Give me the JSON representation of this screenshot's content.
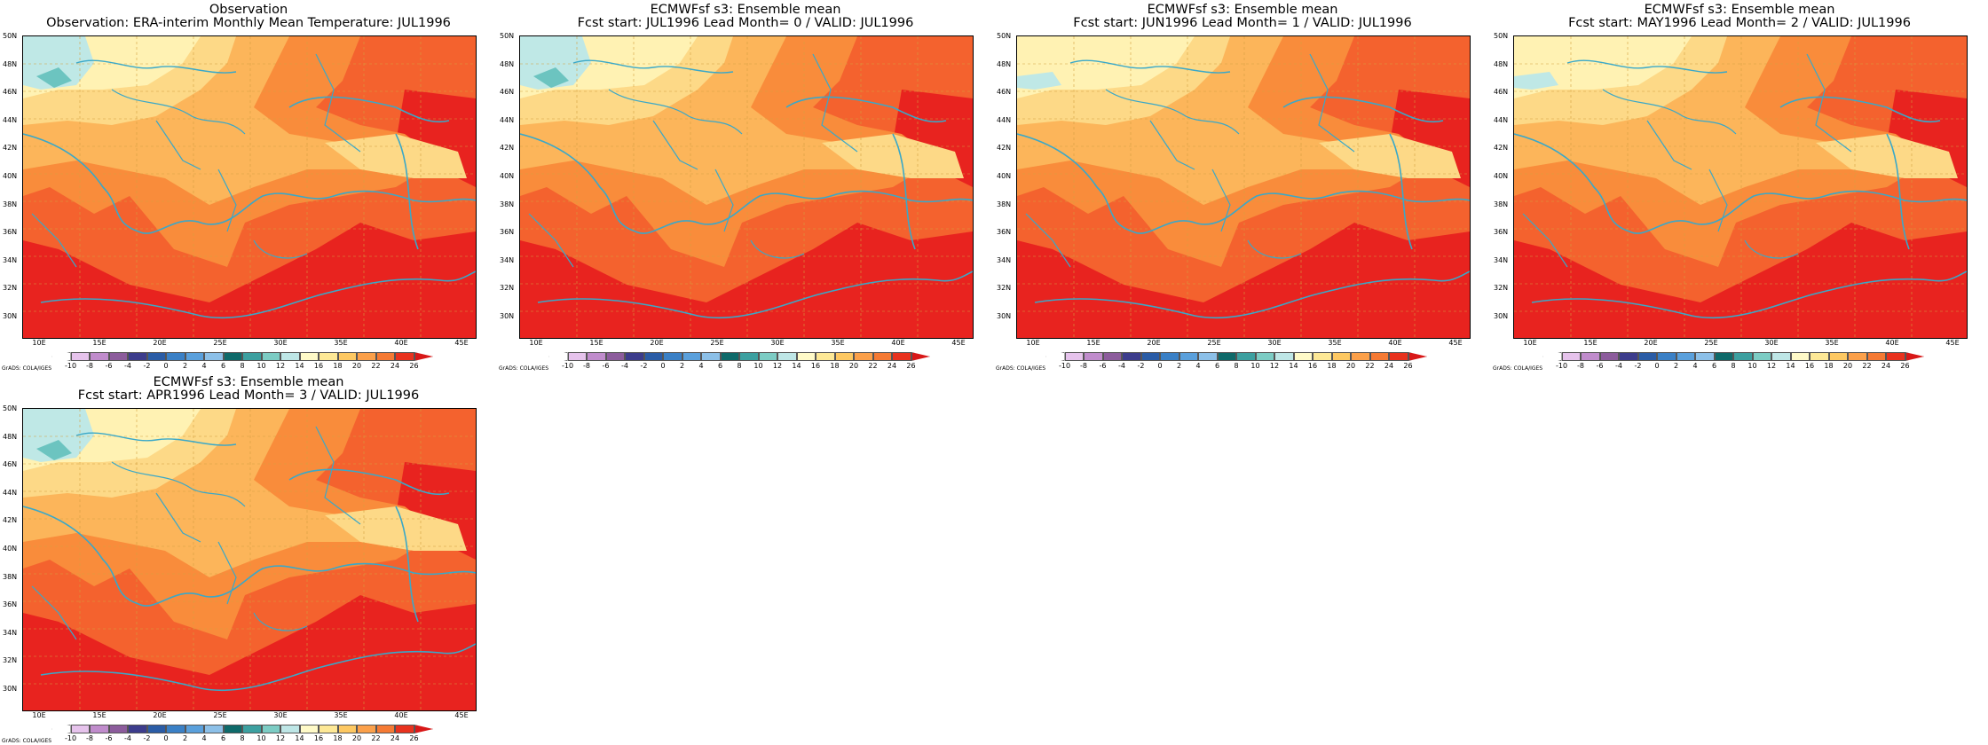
{
  "panels": [
    {
      "title1": "Observation",
      "title2": "Observation: ERA-interim Monthly Mean Temperature: JUL1996"
    },
    {
      "title1": "ECMWFsf s3: Ensemble mean",
      "title2": "Fcst start: JUL1996  Lead Month= 0 / VALID: JUL1996"
    },
    {
      "title1": "ECMWFsf s3: Ensemble mean",
      "title2": "Fcst start: JUN1996  Lead Month= 1 / VALID: JUL1996"
    },
    {
      "title1": "ECMWFsf s3: Ensemble mean",
      "title2": "Fcst start: MAY1996  Lead Month= 2 / VALID: JUL1996"
    },
    {
      "title1": "ECMWFsf s3: Ensemble mean",
      "title2": "Fcst start: APR1996  Lead Month= 3 / VALID: JUL1996"
    }
  ],
  "lat_labels": [
    "50N",
    "48N",
    "46N",
    "44N",
    "42N",
    "40N",
    "38N",
    "36N",
    "34N",
    "32N",
    "30N"
  ],
  "lon_labels": [
    "10E",
    "15E",
    "20E",
    "25E",
    "30E",
    "35E",
    "40E",
    "45E"
  ],
  "colorbar": {
    "ticks": [
      "-10",
      "-8",
      "-6",
      "-4",
      "-2",
      "0",
      "2",
      "4",
      "6",
      "8",
      "10",
      "12",
      "14",
      "16",
      "18",
      "20",
      "22",
      "24",
      "26"
    ],
    "colors": [
      "#ffffff",
      "#e6c3ec",
      "#c08ccc",
      "#8c5c9c",
      "#3c3c8c",
      "#2a5ca6",
      "#3a80c6",
      "#5aa0dc",
      "#8cc0e8",
      "#0e6a6a",
      "#3ca0a0",
      "#7cccc4",
      "#bee6e6",
      "#fffac8",
      "#fde896",
      "#fdc862",
      "#fba04a",
      "#f57a34",
      "#e8321e",
      "#d81818"
    ],
    "grads_label": "GrADS: COLA/IGES"
  }
}
